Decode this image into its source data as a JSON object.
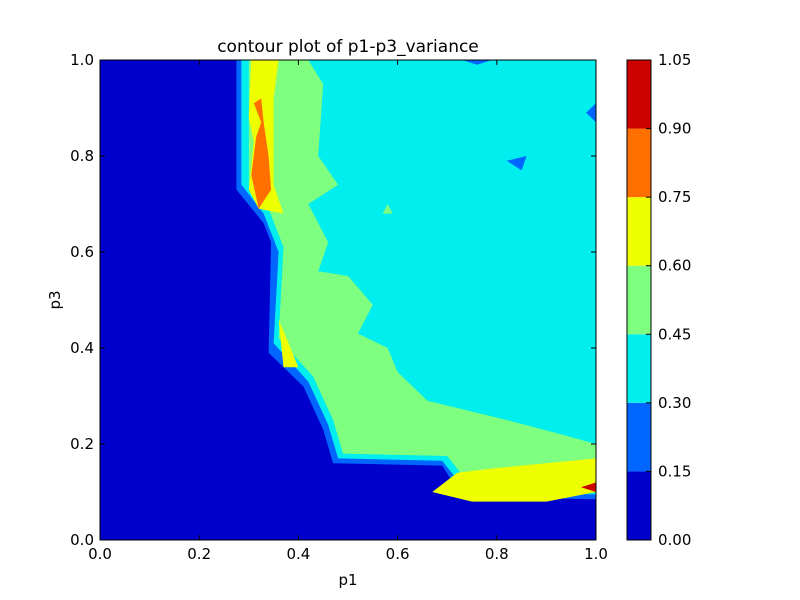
{
  "chart_data": {
    "type": "contour",
    "title": "contour plot of p1-p3_variance",
    "xlabel": "p1",
    "ylabel": "p3",
    "xlim": [
      0.0,
      1.0
    ],
    "ylim": [
      0.0,
      1.0
    ],
    "xticks": [
      "0.0",
      "0.2",
      "0.4",
      "0.6",
      "0.8",
      "1.0"
    ],
    "yticks": [
      "0.0",
      "0.2",
      "0.4",
      "0.6",
      "0.8",
      "1.0"
    ],
    "colorbar": {
      "levels": [
        0.0,
        0.15,
        0.3,
        0.45,
        0.6,
        0.75,
        0.9,
        1.05
      ],
      "tick_labels": [
        "0.00",
        "0.15",
        "0.30",
        "0.45",
        "0.60",
        "0.75",
        "0.90",
        "1.05"
      ],
      "colors": [
        "#0000cd",
        "#0066ff",
        "#00eeee",
        "#7fff7f",
        "#eeff00",
        "#ff7000",
        "#cd0000"
      ]
    },
    "regions": [
      {
        "level_band": [
          0.15,
          0.3
        ],
        "points": [
          [
            0.275,
            1.0
          ],
          [
            0.275,
            0.73
          ],
          [
            0.33,
            0.66
          ],
          [
            0.345,
            0.62
          ],
          [
            0.34,
            0.39
          ],
          [
            0.41,
            0.32
          ],
          [
            0.45,
            0.23
          ],
          [
            0.47,
            0.16
          ],
          [
            0.69,
            0.155
          ],
          [
            0.73,
            0.09
          ],
          [
            1.0,
            0.085
          ],
          [
            1.0,
            1.0
          ]
        ]
      },
      {
        "level_band": [
          0.3,
          0.45
        ],
        "points": [
          [
            0.285,
            1.0
          ],
          [
            0.285,
            0.74
          ],
          [
            0.33,
            0.68
          ],
          [
            0.36,
            0.6
          ],
          [
            0.35,
            0.41
          ],
          [
            0.42,
            0.33
          ],
          [
            0.46,
            0.24
          ],
          [
            0.48,
            0.17
          ],
          [
            0.69,
            0.165
          ],
          [
            0.74,
            0.1
          ],
          [
            1.0,
            0.095
          ],
          [
            1.0,
            1.0
          ]
        ]
      },
      {
        "level_band": [
          0.45,
          0.6
        ],
        "points": [
          [
            0.3,
            1.0
          ],
          [
            0.3,
            0.74
          ],
          [
            0.34,
            0.69
          ],
          [
            0.37,
            0.61
          ],
          [
            0.36,
            0.42
          ],
          [
            0.43,
            0.34
          ],
          [
            0.47,
            0.25
          ],
          [
            0.49,
            0.18
          ],
          [
            0.7,
            0.175
          ],
          [
            0.75,
            0.11
          ],
          [
            1.0,
            0.105
          ],
          [
            1.0,
            1.0
          ]
        ]
      },
      {
        "level_band": [
          0.3,
          0.45
        ],
        "points": [
          [
            0.42,
            1.0
          ],
          [
            0.45,
            0.95
          ],
          [
            0.44,
            0.8
          ],
          [
            0.48,
            0.74
          ],
          [
            0.42,
            0.7
          ],
          [
            0.46,
            0.62
          ],
          [
            0.44,
            0.56
          ],
          [
            0.5,
            0.55
          ],
          [
            0.55,
            0.49
          ],
          [
            0.52,
            0.43
          ],
          [
            0.58,
            0.4
          ],
          [
            0.6,
            0.35
          ],
          [
            0.66,
            0.29
          ],
          [
            0.74,
            0.27
          ],
          [
            0.82,
            0.25
          ],
          [
            0.93,
            0.22
          ],
          [
            1.0,
            0.2
          ],
          [
            1.0,
            1.0
          ]
        ]
      },
      {
        "level_band": [
          0.6,
          0.75
        ],
        "points": [
          [
            0.305,
            1.0
          ],
          [
            0.3,
            0.88
          ],
          [
            0.31,
            0.83
          ],
          [
            0.3,
            0.73
          ],
          [
            0.32,
            0.69
          ],
          [
            0.37,
            0.68
          ],
          [
            0.35,
            0.74
          ],
          [
            0.35,
            0.82
          ],
          [
            0.35,
            0.92
          ],
          [
            0.36,
            1.0
          ]
        ]
      },
      {
        "level_band": [
          0.75,
          0.9
        ],
        "points": [
          [
            0.31,
            0.91
          ],
          [
            0.325,
            0.87
          ],
          [
            0.315,
            0.84
          ],
          [
            0.305,
            0.76
          ],
          [
            0.32,
            0.69
          ],
          [
            0.345,
            0.73
          ],
          [
            0.34,
            0.8
          ],
          [
            0.33,
            0.87
          ],
          [
            0.325,
            0.92
          ]
        ]
      },
      {
        "level_band": [
          0.6,
          0.75
        ],
        "points": [
          [
            0.36,
            0.46
          ],
          [
            0.4,
            0.36
          ],
          [
            0.37,
            0.36
          ]
        ]
      },
      {
        "level_band": [
          0.6,
          0.75
        ],
        "points": [
          [
            0.67,
            0.1
          ],
          [
            0.72,
            0.14
          ],
          [
            0.8,
            0.15
          ],
          [
            0.9,
            0.16
          ],
          [
            1.0,
            0.17
          ],
          [
            1.0,
            0.1
          ],
          [
            0.9,
            0.08
          ],
          [
            0.75,
            0.08
          ]
        ]
      },
      {
        "level_band": [
          0.9,
          1.05
        ],
        "points": [
          [
            0.97,
            0.11
          ],
          [
            1.0,
            0.12
          ],
          [
            1.0,
            0.1
          ]
        ]
      },
      {
        "level_band": [
          0.15,
          0.3
        ],
        "points": [
          [
            0.82,
            0.79
          ],
          [
            0.86,
            0.8
          ],
          [
            0.85,
            0.77
          ]
        ]
      },
      {
        "level_band": [
          0.15,
          0.3
        ],
        "points": [
          [
            0.73,
            1.0
          ],
          [
            0.76,
            0.99
          ],
          [
            0.79,
            1.0
          ]
        ]
      },
      {
        "level_band": [
          0.15,
          0.3
        ],
        "points": [
          [
            0.98,
            0.89
          ],
          [
            1.0,
            0.91
          ],
          [
            1.0,
            0.87
          ]
        ]
      },
      {
        "level_band": [
          0.45,
          0.6
        ],
        "points": [
          [
            0.57,
            0.68
          ],
          [
            0.58,
            0.7
          ],
          [
            0.59,
            0.68
          ]
        ]
      }
    ]
  }
}
